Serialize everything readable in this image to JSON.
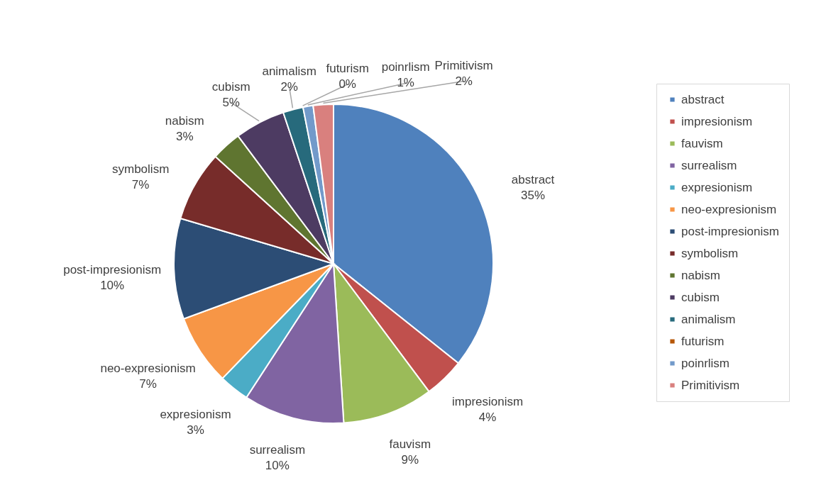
{
  "chart_data": {
    "type": "pie",
    "categories": [
      "abstract",
      "impresionism",
      "fauvism",
      "surrealism",
      "expresionism",
      "neo-expresionism",
      "post-impresionism",
      "symbolism",
      "nabism",
      "cubism",
      "animalism",
      "futurism",
      "poinrlism",
      "Primitivism"
    ],
    "values": [
      35,
      4,
      9,
      10,
      3,
      7,
      10,
      7,
      3,
      5,
      2,
      0,
      1,
      2
    ],
    "value_labels": [
      "35%",
      "4%",
      "9%",
      "10%",
      "3%",
      "7%",
      "10%",
      "7%",
      "3%",
      "5%",
      "2%",
      "0%",
      "1%",
      "2%"
    ],
    "colors": [
      "#4f81bd",
      "#c0504d",
      "#9bbb59",
      "#8064a2",
      "#4bacc6",
      "#f79646",
      "#2c4d75",
      "#772c2a",
      "#5f7530",
      "#4d3b62",
      "#276a7c",
      "#b65708",
      "#729aca",
      "#d9807e"
    ],
    "legend": "right"
  }
}
